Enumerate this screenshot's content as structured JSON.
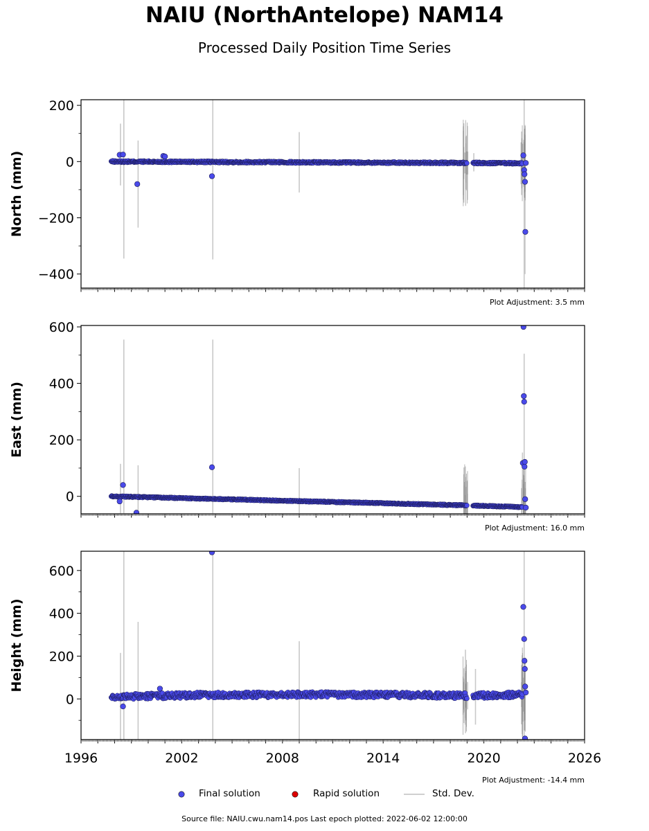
{
  "header": {
    "title": "NAIU (NorthAntelope) NAM14",
    "subtitle": "Processed Daily Position Time Series"
  },
  "legend": {
    "final": "Final solution",
    "rapid": "Rapid solution",
    "std": "Std. Dev.",
    "colors": {
      "final": "#4a4aea",
      "rapid": "#dd0000",
      "std": "#c8c8c8"
    }
  },
  "footer": "Source file: NAIU.cwu.nam14.pos  Last epoch plotted: 2022-06-02 12:00:00",
  "chart_data": [
    {
      "type": "scatter",
      "panel": "north",
      "ylabel": "North (mm)",
      "xlim": [
        1996,
        2026
      ],
      "ylim": [
        -450,
        220
      ],
      "yticks": [
        200,
        0,
        -200,
        -400
      ],
      "ytick_labels": [
        "200",
        "0",
        "−200",
        "−400"
      ],
      "adjustment": "Plot Adjustment: 3.5 mm",
      "trend": [
        [
          1997.8,
          0
        ],
        [
          2019.0,
          -5
        ],
        [
          2022.3,
          -6
        ]
      ],
      "gap": [
        2019.0,
        2019.35
      ],
      "noise": 3,
      "outliers": [
        [
          1998.3,
          24
        ],
        [
          1998.5,
          25
        ],
        [
          1999.35,
          -80
        ],
        [
          2000.9,
          20
        ],
        [
          2001.0,
          18
        ],
        [
          2003.8,
          -52
        ],
        [
          2022.35,
          22
        ],
        [
          2022.4,
          -30
        ],
        [
          2022.42,
          -45
        ],
        [
          2022.45,
          -72
        ],
        [
          2022.47,
          -250
        ],
        [
          2022.5,
          -5
        ]
      ],
      "errorbars": [
        [
          1998.35,
          -85,
          135
        ],
        [
          1998.55,
          -345,
          220
        ],
        [
          1999.4,
          -235,
          75
        ],
        [
          2003.85,
          -348,
          220
        ],
        [
          2009.0,
          -110,
          105
        ],
        [
          2019.4,
          -35,
          30
        ],
        [
          2022.4,
          -450,
          220
        ],
        [
          2022.45,
          -400,
          130
        ]
      ]
    },
    {
      "type": "scatter",
      "panel": "east",
      "ylabel": "East (mm)",
      "xlim": [
        1996,
        2026
      ],
      "ylim": [
        -62,
        605
      ],
      "yticks": [
        600,
        400,
        200,
        0
      ],
      "ytick_labels": [
        "600",
        "400",
        "200",
        "0"
      ],
      "adjustment": "Plot Adjustment: 16.0 mm",
      "trend": [
        [
          1997.8,
          0
        ],
        [
          2019.0,
          -32
        ],
        [
          2022.3,
          -38
        ]
      ],
      "gap": [
        2019.0,
        2019.35
      ],
      "noise": 2,
      "outliers": [
        [
          1998.3,
          -18
        ],
        [
          1998.5,
          40
        ],
        [
          1999.3,
          -58
        ],
        [
          2003.8,
          103
        ],
        [
          2022.32,
          118
        ],
        [
          2022.38,
          355
        ],
        [
          2022.4,
          335
        ],
        [
          2022.42,
          105
        ],
        [
          2022.44,
          122
        ],
        [
          2022.46,
          -10
        ],
        [
          2022.5,
          -40
        ],
        [
          2022.36,
          600
        ]
      ],
      "errorbars": [
        [
          1998.35,
          -60,
          115
        ],
        [
          1998.55,
          -60,
          555
        ],
        [
          1999.4,
          -60,
          110
        ],
        [
          2003.85,
          -60,
          555
        ],
        [
          2009.0,
          -60,
          100
        ],
        [
          2018.9,
          -50,
          5
        ],
        [
          2022.4,
          -60,
          505
        ],
        [
          2022.3,
          -40,
          155
        ]
      ]
    },
    {
      "type": "scatter",
      "panel": "height",
      "ylabel": "Height (mm)",
      "xlim": [
        1996,
        2026
      ],
      "xticks": [
        1996,
        2002,
        2008,
        2014,
        2020,
        2026
      ],
      "ylim": [
        -190,
        690
      ],
      "yticks": [
        600,
        400,
        200,
        0
      ],
      "ytick_labels": [
        "600",
        "400",
        "200",
        "0"
      ],
      "adjustment": "Plot Adjustment: -14.4 mm",
      "trend": [
        [
          1997.8,
          10
        ],
        [
          2003.0,
          18
        ],
        [
          2010.0,
          20
        ],
        [
          2016.0,
          18
        ],
        [
          2019.0,
          15
        ],
        [
          2022.3,
          20
        ]
      ],
      "gap": [
        2019.0,
        2019.35
      ],
      "noise": 13,
      "outliers": [
        [
          1998.5,
          -35
        ],
        [
          2000.7,
          48
        ],
        [
          2003.8,
          685
        ],
        [
          2022.35,
          430
        ],
        [
          2022.4,
          280
        ],
        [
          2022.42,
          178
        ],
        [
          2022.44,
          140
        ],
        [
          2022.46,
          58
        ],
        [
          2022.5,
          30
        ],
        [
          2022.45,
          -185
        ]
      ],
      "errorbars": [
        [
          1998.35,
          -190,
          215
        ],
        [
          1998.55,
          -190,
          690
        ],
        [
          1999.4,
          -190,
          360
        ],
        [
          2003.85,
          -190,
          690
        ],
        [
          2009.0,
          -190,
          270
        ],
        [
          2018.9,
          -160,
          230
        ],
        [
          2019.5,
          -120,
          140
        ],
        [
          2022.4,
          -190,
          690
        ],
        [
          2022.3,
          -180,
          240
        ]
      ]
    }
  ]
}
